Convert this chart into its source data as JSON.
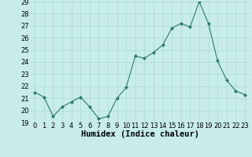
{
  "x": [
    0,
    1,
    2,
    3,
    4,
    5,
    6,
    7,
    8,
    9,
    10,
    11,
    12,
    13,
    14,
    15,
    16,
    17,
    18,
    19,
    20,
    21,
    22,
    23
  ],
  "y": [
    21.5,
    21.1,
    19.5,
    20.3,
    20.7,
    21.1,
    20.3,
    19.3,
    19.5,
    21.0,
    21.9,
    24.5,
    24.3,
    24.8,
    25.4,
    26.8,
    27.2,
    26.9,
    29.0,
    27.2,
    24.1,
    22.5,
    21.6,
    21.3
  ],
  "line_color": "#2d7a6a",
  "marker": "D",
  "marker_size": 2.0,
  "bg_color": "#c8ecec",
  "grid_color": "#a8d8d8",
  "xlabel": "Humidex (Indice chaleur)",
  "ylim": [
    19,
    29
  ],
  "xlim": [
    -0.5,
    23.5
  ],
  "yticks": [
    19,
    20,
    21,
    22,
    23,
    24,
    25,
    26,
    27,
    28,
    29
  ],
  "xticks": [
    0,
    1,
    2,
    3,
    4,
    5,
    6,
    7,
    8,
    9,
    10,
    11,
    12,
    13,
    14,
    15,
    16,
    17,
    18,
    19,
    20,
    21,
    22,
    23
  ],
  "tick_fontsize": 6,
  "xlabel_fontsize": 7.5
}
